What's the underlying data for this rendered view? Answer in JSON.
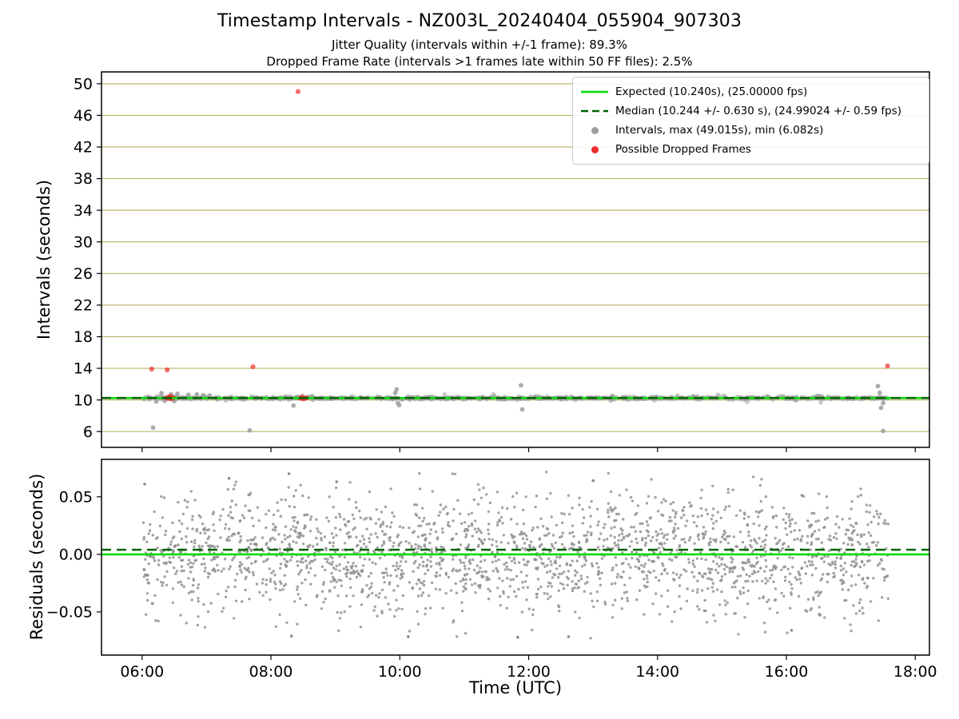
{
  "page": {
    "title": "Timestamp Intervals - NZ003L_20240404_055904_907303",
    "subtitle_jitter": "Jitter Quality (intervals within +/-1 frame): 89.3%",
    "subtitle_dropped": "Dropped Frame Rate (intervals >1 frames late within 50 FF files): 2.5%"
  },
  "chart_data": [
    {
      "type": "scatter",
      "name": "timestamp-intervals",
      "ylabel": "Intervals (seconds)",
      "ylim": [
        4.0,
        51.5
      ],
      "yticks": [
        6,
        10,
        14,
        18,
        22,
        26,
        30,
        34,
        38,
        42,
        46,
        50
      ],
      "xlim_hours": [
        5.37,
        18.22
      ],
      "xtick_hours": [
        6,
        8,
        10,
        12,
        14,
        16,
        18
      ],
      "grid": true,
      "grid_color": "#bdb76b",
      "marker_color": "#9e9e9e",
      "dropped_color": "#ee2c2c",
      "expected": {
        "value": 10.24,
        "fps": 25.0,
        "color": "#00dd00",
        "label": "Expected (10.240s), (25.00000 fps)"
      },
      "median": {
        "value": 10.244,
        "std": 0.63,
        "fps": 24.99024,
        "fps_std": 0.59,
        "color": "#006400",
        "label": "Median (10.244 +/- 0.630 s), (24.99024 +/- 0.59 fps)"
      },
      "intervals_label": "Intervals, max (49.015s), min (6.082s)",
      "dropped_label": "Possible Dropped Frames",
      "max_interval": 49.015,
      "min_interval": 6.082,
      "band": {
        "seed": 42,
        "n": 800,
        "x_start": 6.02,
        "x_end": 17.58,
        "mean": 10.24,
        "std": 0.09,
        "wide_std": 0.22,
        "wide_frac": 0.08
      },
      "gray_outliers": [
        [
          6.17,
          6.5
        ],
        [
          7.67,
          6.15
        ],
        [
          17.5,
          6.082
        ],
        [
          6.3,
          10.85
        ],
        [
          6.45,
          10.72
        ],
        [
          6.55,
          10.78
        ],
        [
          6.72,
          10.65
        ],
        [
          6.85,
          10.7
        ],
        [
          6.95,
          10.6
        ],
        [
          7.05,
          10.55
        ],
        [
          6.22,
          9.8
        ],
        [
          6.35,
          9.9
        ],
        [
          6.5,
          9.85
        ],
        [
          8.35,
          9.3
        ],
        [
          9.93,
          10.9
        ],
        [
          9.95,
          11.35
        ],
        [
          9.97,
          9.6
        ],
        [
          9.99,
          9.35
        ],
        [
          11.88,
          11.85
        ],
        [
          11.9,
          8.8
        ],
        [
          13.3,
          10.5
        ],
        [
          14.55,
          10.45
        ],
        [
          16.5,
          10.5
        ],
        [
          16.55,
          10.42
        ],
        [
          17.42,
          11.75
        ],
        [
          17.45,
          10.9
        ],
        [
          17.47,
          9.0
        ],
        [
          17.5,
          9.6
        ]
      ],
      "red_points": [
        [
          8.42,
          49.015
        ],
        [
          6.15,
          13.9
        ],
        [
          6.39,
          13.8
        ],
        [
          7.72,
          14.2
        ],
        [
          17.57,
          14.3
        ],
        [
          6.38,
          10.28
        ],
        [
          6.4,
          10.22
        ],
        [
          6.41,
          10.34
        ],
        [
          6.42,
          10.25
        ],
        [
          6.43,
          10.18
        ],
        [
          6.44,
          10.3
        ],
        [
          6.45,
          10.24
        ],
        [
          6.46,
          10.36
        ],
        [
          6.47,
          10.2
        ],
        [
          6.48,
          10.3
        ],
        [
          6.43,
          10.45
        ],
        [
          8.45,
          10.26
        ],
        [
          8.47,
          10.2
        ],
        [
          8.49,
          10.31
        ],
        [
          8.51,
          10.24
        ],
        [
          8.53,
          10.19
        ],
        [
          8.55,
          10.29
        ],
        [
          8.5,
          10.15
        ],
        [
          8.48,
          10.35
        ]
      ]
    },
    {
      "type": "scatter",
      "name": "residuals",
      "ylabel": "Residuals (seconds)",
      "xlabel": "Time (UTC)",
      "ylim": [
        -0.0875,
        0.0825
      ],
      "yticks": [
        -0.05,
        0.0,
        0.05
      ],
      "xlim_hours": [
        5.37,
        18.22
      ],
      "xtick_hours": [
        6,
        8,
        10,
        12,
        14,
        16,
        18
      ],
      "xtick_labels": [
        "06:00",
        "08:00",
        "10:00",
        "12:00",
        "14:00",
        "16:00",
        "18:00"
      ],
      "grid": false,
      "marker_color": "#8c8c8c",
      "expected_line": {
        "value": 0.0,
        "color": "#00dd00"
      },
      "median_line": {
        "value": 0.004,
        "color": "#006400"
      },
      "cloud": {
        "seed": 20240404,
        "n": 2150,
        "x_start": 6.02,
        "x_end": 17.58,
        "mean": 0.0,
        "std": 0.027,
        "clip": 0.0735
      },
      "outliers": [
        [
          6.04,
          0.061
        ],
        [
          7.35,
          0.066
        ],
        [
          8.28,
          0.07
        ],
        [
          9.02,
          0.063
        ],
        [
          13.0,
          0.064
        ],
        [
          8.32,
          -0.071
        ],
        [
          10.13,
          -0.0715
        ],
        [
          11.83,
          -0.072
        ],
        [
          12.62,
          -0.0715
        ],
        [
          16.08,
          -0.066
        ]
      ]
    }
  ]
}
